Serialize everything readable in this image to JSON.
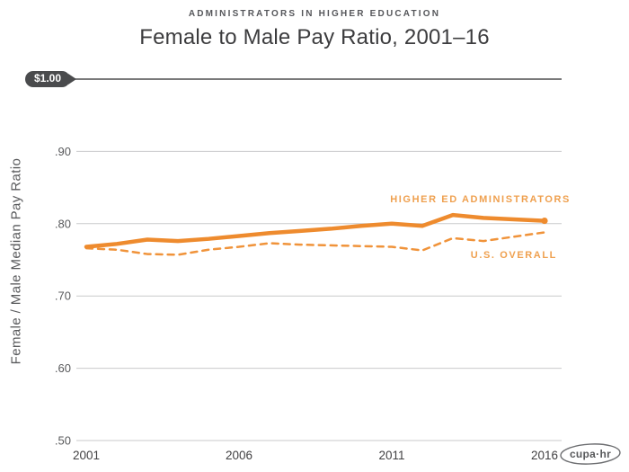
{
  "header": {
    "eyebrow": "ADMINISTRATORS IN HIGHER EDUCATION",
    "title": "Female to Male Pay Ratio, 2001–16"
  },
  "y_axis": {
    "title": "Female / Male Median Pay Ratio",
    "top_badge": "$1.00",
    "ticks": [
      ".90",
      ".80",
      ".70",
      ".60",
      ".50"
    ],
    "tick_values": [
      0.9,
      0.8,
      0.7,
      0.6,
      0.5
    ]
  },
  "x_axis": {
    "ticks": [
      "2001",
      "2006",
      "2011",
      "2016"
    ],
    "tick_years": [
      2001,
      2006,
      2011,
      2016
    ]
  },
  "chart_data": {
    "type": "line",
    "title": "Female to Male Pay Ratio, 2001–16",
    "subtitle": "ADMINISTRATORS IN HIGHER EDUCATION",
    "xlabel": "",
    "ylabel": "Female / Male Median Pay Ratio",
    "xlim": [
      2001,
      2016
    ],
    "ylim": [
      0.5,
      1.0
    ],
    "grid": "horizontal",
    "legend": "inline-labels",
    "reference_line": {
      "value": 1.0,
      "label": "$1.00"
    },
    "x": [
      2001,
      2002,
      2003,
      2004,
      2005,
      2006,
      2007,
      2008,
      2009,
      2010,
      2011,
      2012,
      2013,
      2014,
      2015,
      2016
    ],
    "series": [
      {
        "name": "HIGHER ED ADMINISTRATORS",
        "style": "solid",
        "values": [
          0.768,
          0.772,
          0.778,
          0.776,
          0.779,
          0.783,
          0.787,
          0.79,
          0.793,
          0.797,
          0.8,
          0.797,
          0.812,
          0.808,
          0.806,
          0.804
        ]
      },
      {
        "name": "U.S. OVERALL",
        "style": "dashed",
        "values": [
          0.766,
          0.764,
          0.758,
          0.757,
          0.764,
          0.768,
          0.773,
          0.771,
          0.77,
          0.769,
          0.768,
          0.763,
          0.78,
          0.776,
          0.782,
          0.788
        ]
      }
    ]
  },
  "colors": {
    "line_orange": "#ee8b2e",
    "dashed_orange": "#f0933a",
    "label_orange": "#efa04f",
    "badge_gray": "#4a4b4d",
    "baseline_gray": "#4d4d4f",
    "grid_gray": "#c9cacb",
    "tick_text": "#58595b",
    "title_text": "#3c3c3e"
  },
  "logo": {
    "text": "cupa·hr"
  }
}
